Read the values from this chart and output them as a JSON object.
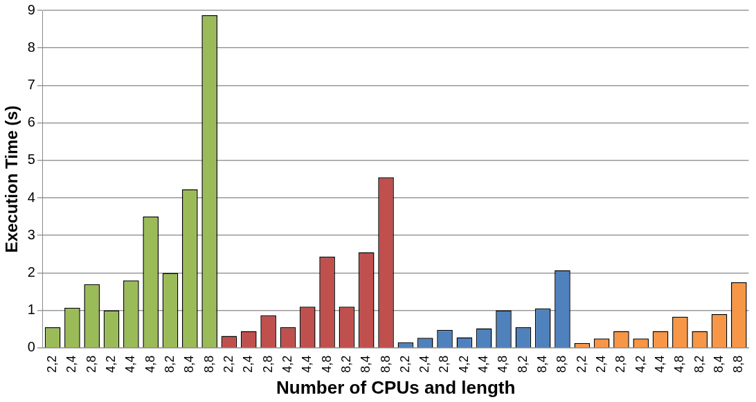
{
  "chart_data": {
    "type": "bar",
    "xlabel": "Number of CPUs and length",
    "ylabel": "Execution Time (s)",
    "categories": [
      "2,2",
      "2,4",
      "2,8",
      "4,2",
      "4,4",
      "4,8",
      "8,2",
      "8,4",
      "8,8",
      "2,2",
      "2,4",
      "2,8",
      "4,2",
      "4,4",
      "4,8",
      "8,2",
      "8,4",
      "8,8",
      "2,2",
      "2,4",
      "2,8",
      "4,2",
      "4,4",
      "4,8",
      "8,2",
      "8,4",
      "8,8",
      "2,2",
      "2,4",
      "2,8",
      "4,2",
      "4,4",
      "4,8",
      "8,2",
      "8,4",
      "8,8"
    ],
    "values": [
      0.55,
      1.07,
      1.7,
      1.0,
      1.8,
      3.5,
      2.0,
      4.23,
      8.87,
      0.32,
      0.45,
      0.87,
      0.55,
      1.1,
      2.43,
      1.1,
      2.55,
      4.55,
      0.15,
      0.27,
      0.48,
      0.28,
      0.52,
      1.0,
      0.55,
      1.05,
      2.07,
      0.13,
      0.25,
      0.45,
      0.25,
      0.45,
      0.83,
      0.45,
      0.9,
      1.75
    ],
    "colors": [
      "#9bbb59",
      "#9bbb59",
      "#9bbb59",
      "#9bbb59",
      "#9bbb59",
      "#9bbb59",
      "#9bbb59",
      "#9bbb59",
      "#9bbb59",
      "#c0504d",
      "#c0504d",
      "#c0504d",
      "#c0504d",
      "#c0504d",
      "#c0504d",
      "#c0504d",
      "#c0504d",
      "#c0504d",
      "#4f81bd",
      "#4f81bd",
      "#4f81bd",
      "#4f81bd",
      "#4f81bd",
      "#4f81bd",
      "#4f81bd",
      "#4f81bd",
      "#4f81bd",
      "#f79646",
      "#f79646",
      "#f79646",
      "#f79646",
      "#f79646",
      "#f79646",
      "#f79646",
      "#f79646",
      "#f79646"
    ],
    "ylim": [
      0,
      9
    ],
    "yticks": [
      0,
      1,
      2,
      3,
      4,
      5,
      6,
      7,
      8,
      9
    ],
    "grid": "y",
    "legend": false
  }
}
